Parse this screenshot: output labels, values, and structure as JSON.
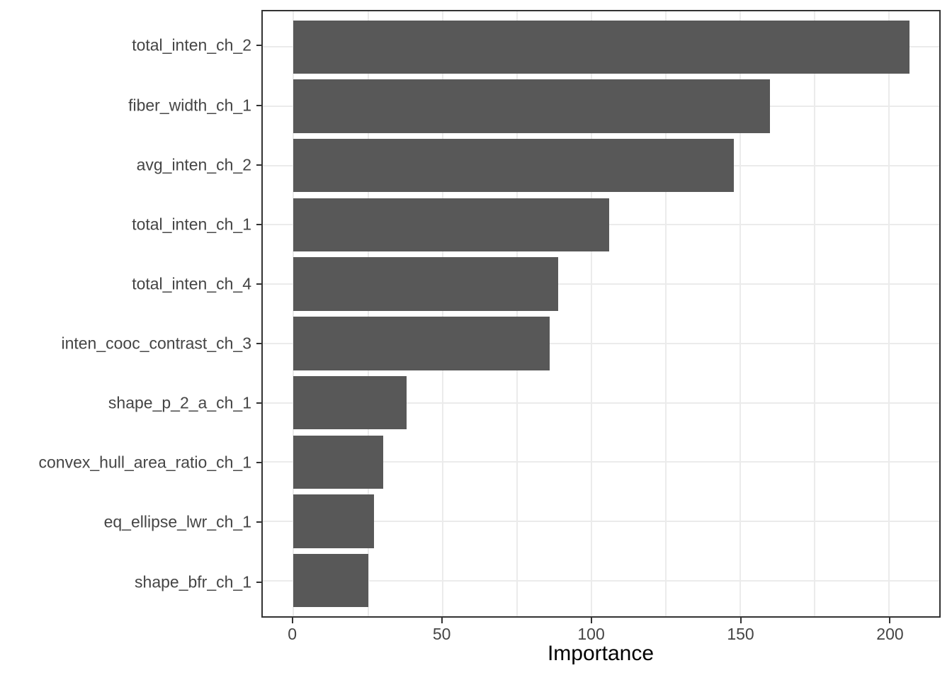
{
  "chart_data": {
    "type": "bar",
    "orientation": "horizontal",
    "title": "",
    "xlabel": "Importance",
    "ylabel": "",
    "categories": [
      "total_inten_ch_2",
      "fiber_width_ch_1",
      "avg_inten_ch_2",
      "total_inten_ch_1",
      "total_inten_ch_4",
      "inten_cooc_contrast_ch_3",
      "shape_p_2_a_ch_1",
      "convex_hull_area_ratio_ch_1",
      "eq_ellipse_lwr_ch_1",
      "shape_bfr_ch_1"
    ],
    "values": [
      207,
      160,
      148,
      106,
      89,
      86,
      38,
      30,
      27,
      25
    ],
    "x_ticks_major": [
      0,
      50,
      100,
      150,
      200
    ],
    "x_ticks_minor": [
      25,
      75,
      125,
      175
    ],
    "x_domain": [
      -10.35,
      216.95
    ],
    "bar_width_fraction": 0.9,
    "grid": "major+minor",
    "legend": "none",
    "colors": {
      "bar_fill": "#585858",
      "panel_border": "#333333",
      "grid_line": "#EBEBEB",
      "tick_mark": "#333333",
      "axis_text": "#454545",
      "axis_title": "#000000",
      "background": "#FFFFFF"
    }
  }
}
